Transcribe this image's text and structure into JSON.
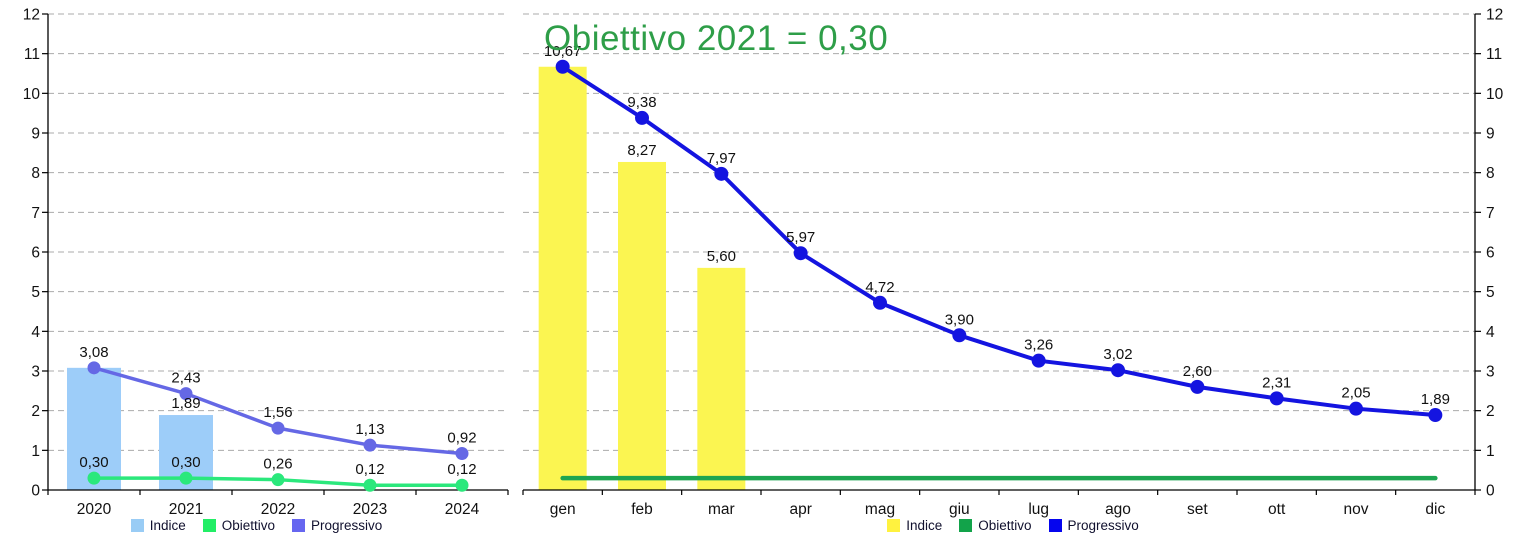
{
  "page": {
    "background": "#ffffff"
  },
  "chart_data": [
    {
      "name": "annual-summary",
      "type": "combo",
      "title": "",
      "categories": [
        "2020",
        "2021",
        "2022",
        "2023",
        "2024"
      ],
      "ylim": [
        0,
        12
      ],
      "ytick_step": 1,
      "grid": "horizontal-dashed",
      "y_axis_side": "left",
      "legend_position": "bottom",
      "series": [
        {
          "name": "Indice",
          "type": "bar",
          "color": "#9dcdf9",
          "values": [
            3.08,
            1.89,
            null,
            null,
            null
          ],
          "labels": [
            null,
            "1,89",
            null,
            null,
            null
          ]
        },
        {
          "name": "Obiettivo",
          "type": "line",
          "color": "#2be87c",
          "marker": true,
          "values": [
            0.3,
            0.3,
            0.26,
            0.12,
            0.12
          ],
          "labels": [
            "0,30",
            "0,30",
            "0,26",
            "0,12",
            "0,12"
          ]
        },
        {
          "name": "Progressivo",
          "type": "line",
          "color": "#6568e5",
          "marker": true,
          "values": [
            3.08,
            2.43,
            1.56,
            1.13,
            0.92
          ],
          "labels": [
            "3,08",
            "2,43",
            "1,56",
            "1,13",
            "0,92"
          ]
        }
      ],
      "legend": [
        {
          "label": "Indice",
          "color": "#99ccf5"
        },
        {
          "label": "Obiettivo",
          "color": "#22ee66"
        },
        {
          "label": "Progressivo",
          "color": "#6666f0"
        }
      ]
    },
    {
      "name": "monthly-detail",
      "type": "combo",
      "title": "Obiettivo 2021 = 0,30",
      "title_color": "#2e9e48",
      "categories": [
        "gen",
        "feb",
        "mar",
        "apr",
        "mag",
        "giu",
        "lug",
        "ago",
        "set",
        "ott",
        "nov",
        "dic"
      ],
      "ylim": [
        0,
        12
      ],
      "ytick_step": 1,
      "grid": "horizontal-dashed",
      "y_axis_side": "right",
      "legend_position": "bottom",
      "series": [
        {
          "name": "Indice",
          "type": "bar",
          "color": "#fbf551",
          "values": [
            10.67,
            8.27,
            5.6,
            null,
            null,
            null,
            null,
            null,
            null,
            null,
            null,
            null
          ],
          "labels": [
            null,
            "8,27",
            "5,60",
            null,
            null,
            null,
            null,
            null,
            null,
            null,
            null,
            null
          ]
        },
        {
          "name": "Obiettivo",
          "type": "line",
          "color": "#1ca551",
          "marker": false,
          "values": [
            0.3,
            0.3,
            0.3,
            0.3,
            0.3,
            0.3,
            0.3,
            0.3,
            0.3,
            0.3,
            0.3,
            0.3
          ],
          "labels": [
            null,
            null,
            null,
            null,
            null,
            null,
            null,
            null,
            null,
            null,
            null,
            null
          ]
        },
        {
          "name": "Progressivo",
          "type": "line",
          "color": "#1414e0",
          "marker": true,
          "values": [
            10.67,
            9.38,
            7.97,
            5.97,
            4.72,
            3.9,
            3.26,
            3.02,
            2.6,
            2.31,
            2.05,
            1.89
          ],
          "labels": [
            "10,67",
            "9,38",
            "7,97",
            "5,97",
            "4,72",
            "3,90",
            "3,26",
            "3,02",
            "2,60",
            "2,31",
            "2,05",
            "1,89"
          ]
        }
      ],
      "legend": [
        {
          "label": "Indice",
          "color": "#fff23f"
        },
        {
          "label": "Obiettivo",
          "color": "#12a34a"
        },
        {
          "label": "Progressivo",
          "color": "#0505ee"
        }
      ]
    }
  ]
}
